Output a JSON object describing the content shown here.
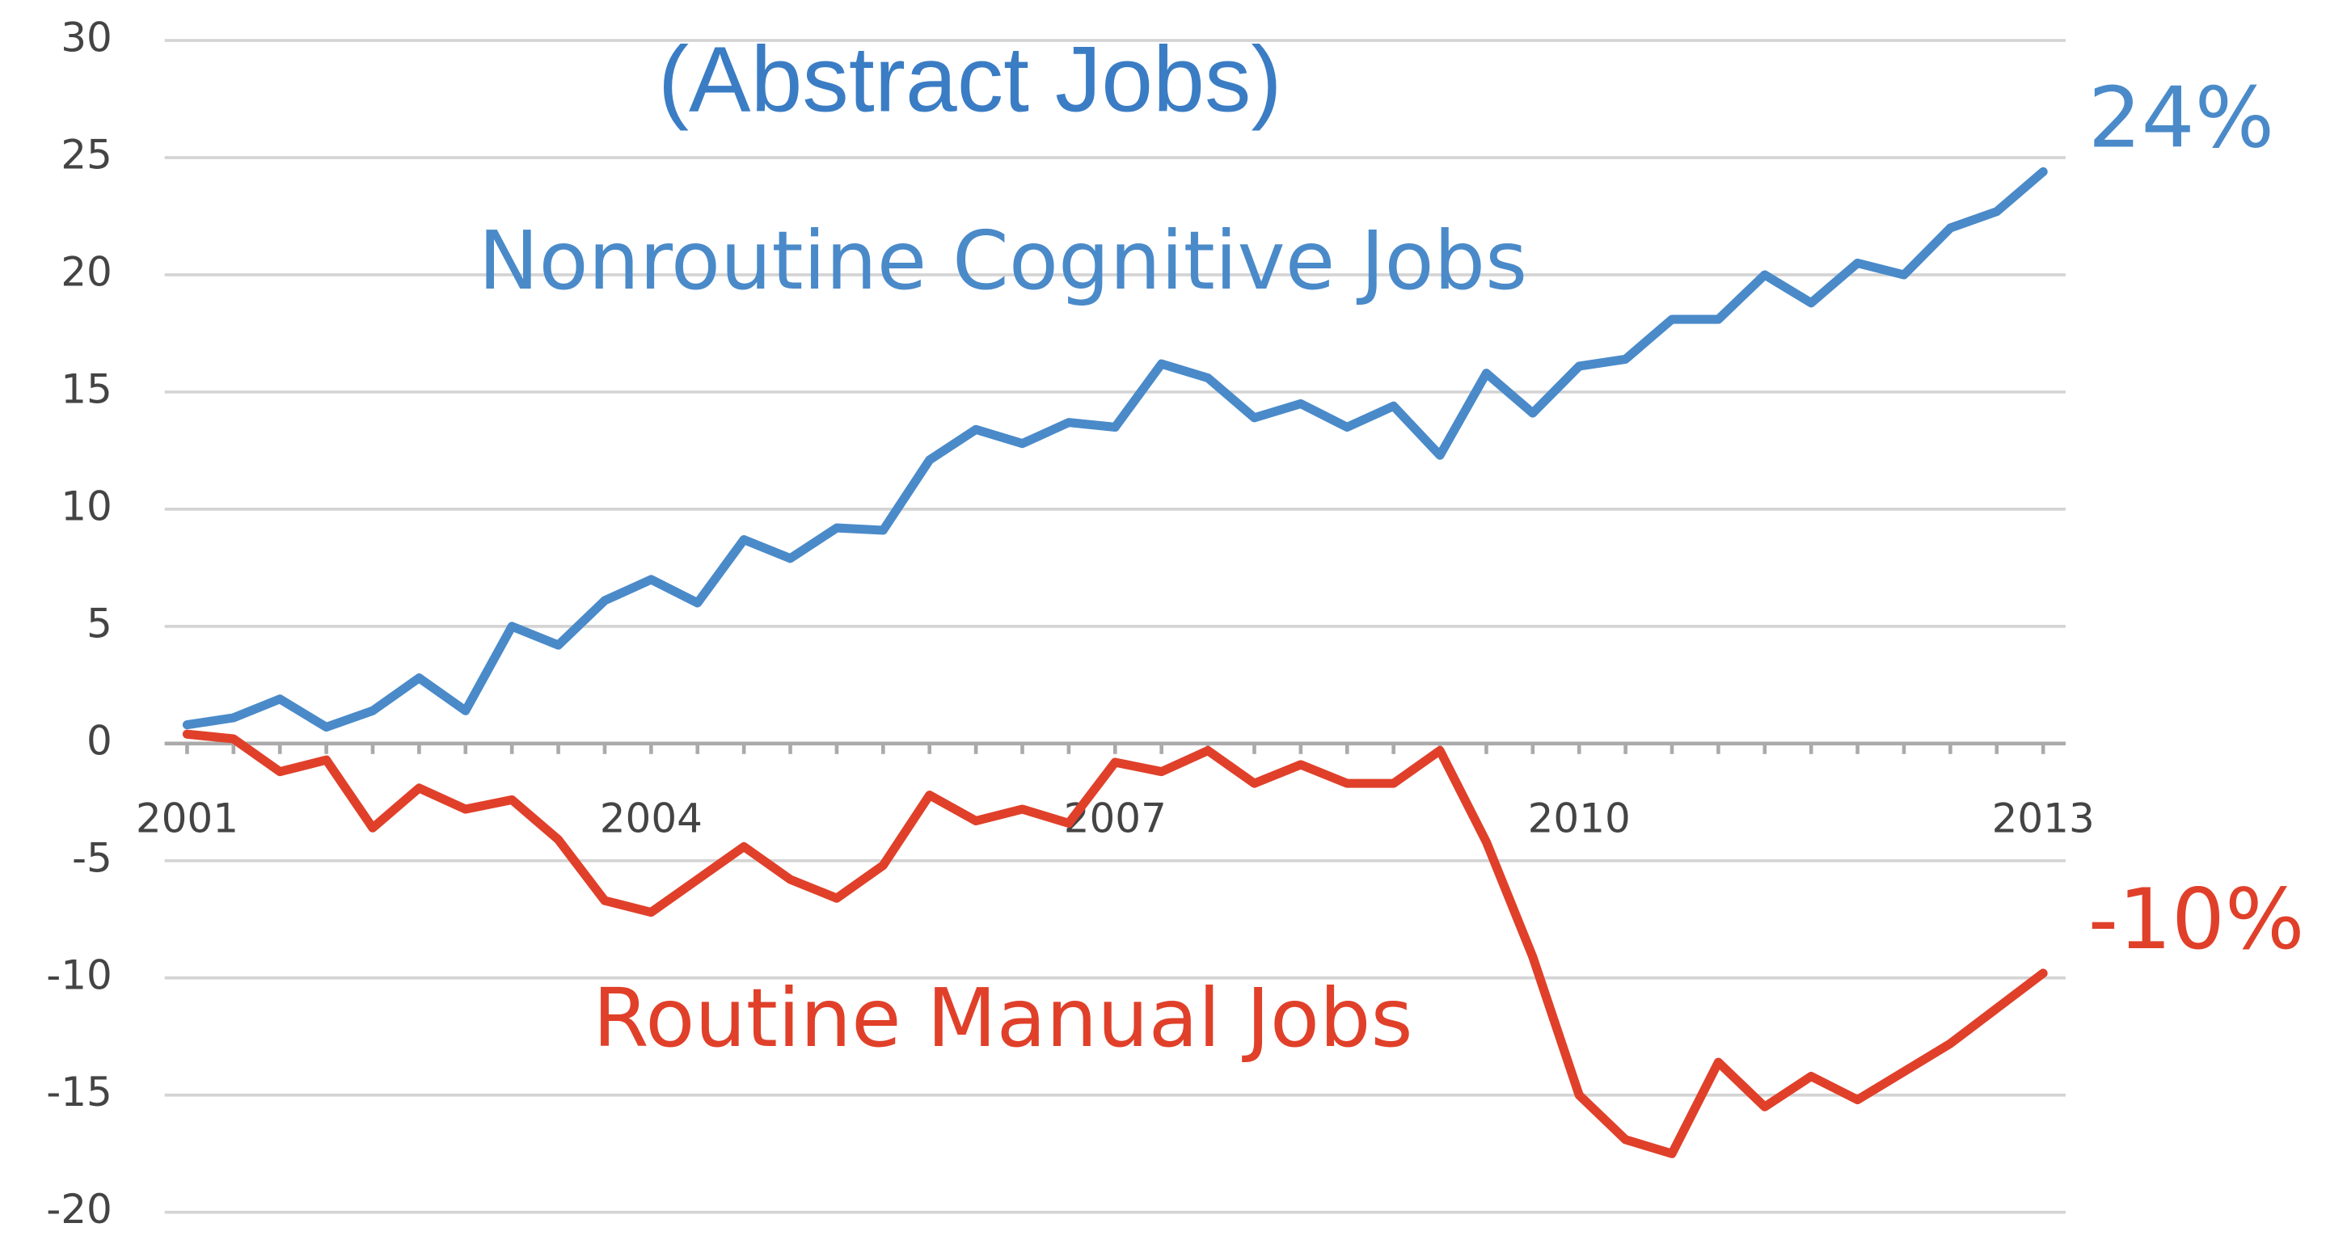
{
  "chart_data": {
    "type": "line",
    "categories": [
      "2001",
      null,
      null,
      null,
      null,
      null,
      null,
      null,
      null,
      null,
      "2004",
      null,
      null,
      null,
      null,
      null,
      null,
      null,
      null,
      null,
      "2007",
      null,
      null,
      null,
      null,
      null,
      null,
      null,
      null,
      null,
      "2010",
      null,
      null,
      null,
      null,
      null,
      null,
      null,
      null,
      null,
      "2013"
    ],
    "series": [
      {
        "name": "Nonroutine Cognitive Jobs",
        "color": "#4a8ac9",
        "values": [
          0.8,
          1.1,
          1.9,
          0.7,
          1.4,
          2.8,
          1.4,
          5.0,
          4.2,
          6.1,
          7.0,
          6.0,
          8.7,
          7.9,
          9.2,
          9.1,
          12.1,
          13.4,
          12.8,
          13.7,
          13.5,
          16.2,
          15.6,
          13.9,
          14.5,
          13.5,
          14.4,
          12.3,
          15.8,
          14.1,
          16.1,
          16.4,
          18.1,
          18.1,
          20.0,
          18.8,
          20.5,
          20.0,
          22.0,
          22.7,
          24.4
        ],
        "end_label": "24%"
      },
      {
        "name": "Routine Manual Jobs",
        "color": "#e0402a",
        "values": [
          0.4,
          0.2,
          -1.2,
          -0.7,
          -3.6,
          -1.9,
          -2.8,
          -2.4,
          -4.1,
          -6.7,
          -7.2,
          -5.8,
          -4.4,
          -5.8,
          -6.6,
          -5.2,
          -2.2,
          -3.3,
          -2.8,
          -3.4,
          -0.8,
          -1.2,
          -0.3,
          -1.7,
          -0.9,
          -1.7,
          -1.7,
          -0.3,
          -4.2,
          -9.1,
          -15.0,
          -16.9,
          -17.5,
          -13.6,
          -15.5,
          -14.2,
          -15.2,
          -14.0,
          -12.8,
          -11.3,
          -9.8
        ],
        "end_label": "-10%"
      }
    ],
    "annotation": "(Abstract Jobs)",
    "ylim": [
      -20,
      30
    ],
    "yticks": [
      -20,
      -15,
      -10,
      -5,
      0,
      5,
      10,
      15,
      20,
      25,
      30
    ],
    "grid": true
  }
}
